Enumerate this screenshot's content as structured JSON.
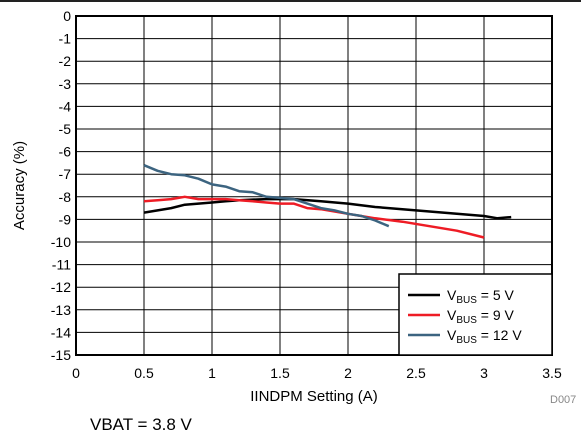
{
  "chart_data": {
    "type": "line",
    "title": "",
    "xlabel": "IINDPM Setting (A)",
    "ylabel": "Accuracy (%)",
    "xlim": [
      0,
      3.5
    ],
    "ylim": [
      -15,
      0
    ],
    "xticks": [
      0,
      0.5,
      1,
      1.5,
      2,
      2.5,
      3,
      3.5
    ],
    "xtick_labels": [
      "0",
      "0.5",
      "1",
      "1.5",
      "2",
      "2.5",
      "3",
      "3.5"
    ],
    "yticks": [
      0,
      -1,
      -2,
      -3,
      -4,
      -5,
      -6,
      -7,
      -8,
      -9,
      -10,
      -11,
      -12,
      -13,
      -14,
      -15
    ],
    "ytick_labels": [
      "0",
      "-1",
      "-2",
      "-3",
      "-4",
      "-5",
      "-6",
      "-7",
      "-8",
      "-9",
      "-10",
      "-11",
      "-12",
      "-13",
      "-14",
      "-15"
    ],
    "grid": true,
    "legend_position": "bottom-right",
    "series": [
      {
        "legend": {
          "prefix": "V",
          "sub": "BUS",
          "suffix": " = 5 V"
        },
        "color": "#000000",
        "points": [
          [
            0.5,
            -8.7
          ],
          [
            0.6,
            -8.6
          ],
          [
            0.7,
            -8.5
          ],
          [
            0.8,
            -8.35
          ],
          [
            0.9,
            -8.3
          ],
          [
            1.0,
            -8.25
          ],
          [
            1.1,
            -8.2
          ],
          [
            1.2,
            -8.15
          ],
          [
            1.4,
            -8.1
          ],
          [
            1.6,
            -8.1
          ],
          [
            1.8,
            -8.2
          ],
          [
            2.0,
            -8.3
          ],
          [
            2.2,
            -8.45
          ],
          [
            2.4,
            -8.55
          ],
          [
            2.6,
            -8.65
          ],
          [
            2.8,
            -8.75
          ],
          [
            3.0,
            -8.85
          ],
          [
            3.1,
            -8.95
          ],
          [
            3.2,
            -8.9
          ]
        ]
      },
      {
        "legend": {
          "prefix": "V",
          "sub": "BUS",
          "suffix": " = 9 V"
        },
        "color": "#ee1c25",
        "points": [
          [
            0.5,
            -8.2
          ],
          [
            0.6,
            -8.15
          ],
          [
            0.7,
            -8.1
          ],
          [
            0.8,
            -8.0
          ],
          [
            0.9,
            -8.1
          ],
          [
            1.0,
            -8.1
          ],
          [
            1.1,
            -8.1
          ],
          [
            1.2,
            -8.15
          ],
          [
            1.3,
            -8.2
          ],
          [
            1.4,
            -8.25
          ],
          [
            1.5,
            -8.3
          ],
          [
            1.6,
            -8.3
          ],
          [
            1.7,
            -8.5
          ],
          [
            1.8,
            -8.55
          ],
          [
            2.0,
            -8.75
          ],
          [
            2.2,
            -8.95
          ],
          [
            2.4,
            -9.1
          ],
          [
            2.6,
            -9.3
          ],
          [
            2.8,
            -9.5
          ],
          [
            3.0,
            -9.8
          ]
        ]
      },
      {
        "legend": {
          "prefix": "V",
          "sub": "BUS",
          "suffix": " = 12 V"
        },
        "color": "#3c6480",
        "points": [
          [
            0.5,
            -6.6
          ],
          [
            0.6,
            -6.85
          ],
          [
            0.7,
            -7.0
          ],
          [
            0.8,
            -7.05
          ],
          [
            0.9,
            -7.2
          ],
          [
            1.0,
            -7.45
          ],
          [
            1.1,
            -7.55
          ],
          [
            1.2,
            -7.75
          ],
          [
            1.3,
            -7.8
          ],
          [
            1.4,
            -8.0
          ],
          [
            1.5,
            -8.05
          ],
          [
            1.6,
            -8.1
          ],
          [
            1.7,
            -8.3
          ],
          [
            1.8,
            -8.5
          ],
          [
            1.9,
            -8.6
          ],
          [
            2.0,
            -8.75
          ],
          [
            2.1,
            -8.85
          ],
          [
            2.2,
            -9.05
          ],
          [
            2.3,
            -9.3
          ]
        ]
      }
    ]
  },
  "caption": "VBAT = 3.8 V",
  "figure_id": "D007"
}
